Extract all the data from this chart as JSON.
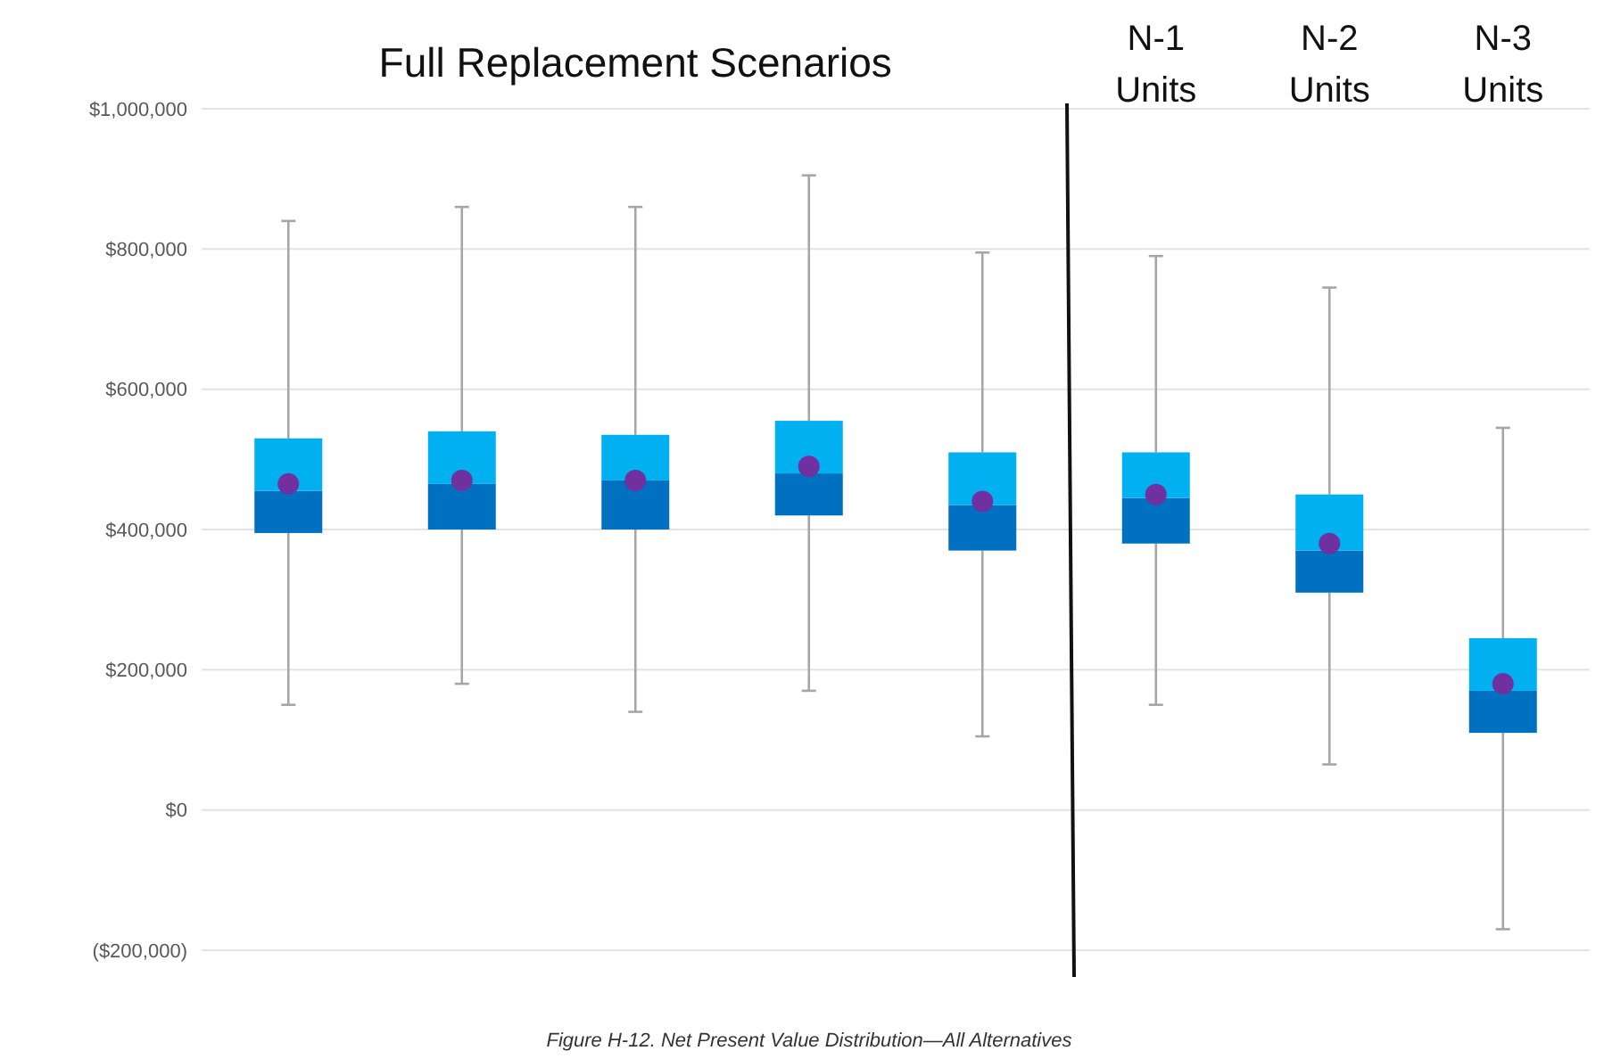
{
  "chart_data": {
    "type": "box",
    "title": "Full Replacement Scenarios",
    "categories": [
      null,
      null,
      null,
      null,
      null,
      null,
      null,
      null
    ],
    "series": [
      {
        "color": "#0070c0",
        "boxes": [
          {
            "low": 150000,
            "q1": 395000,
            "median": 455000,
            "q3": 530000,
            "high": 840000,
            "mean": 465000
          },
          {
            "low": 180000,
            "q1": 400000,
            "median": 465000,
            "q3": 540000,
            "high": 860000,
            "mean": 470000
          },
          {
            "low": 140000,
            "q1": 400000,
            "median": 470000,
            "q3": 535000,
            "high": 860000,
            "mean": 470000
          },
          {
            "low": 170000,
            "q1": 420000,
            "median": 480000,
            "q3": 555000,
            "high": 905000,
            "mean": 490000
          },
          {
            "low": 105000,
            "q1": 370000,
            "median": 435000,
            "q3": 510000,
            "high": 795000,
            "mean": 440000
          },
          {
            "low": 150000,
            "q1": 380000,
            "median": 445000,
            "q3": 510000,
            "high": 790000,
            "mean": 450000
          },
          {
            "low": 65000,
            "q1": 310000,
            "median": 370000,
            "q3": 450000,
            "high": 745000,
            "mean": 380000
          },
          {
            "low": -170000,
            "q1": 110000,
            "median": 170000,
            "q3": 245000,
            "high": 545000,
            "mean": 180000
          }
        ]
      }
    ],
    "ylim": [
      -200000,
      1000000
    ],
    "yticks": [
      {
        "value": -200000,
        "label": "($200,000)"
      },
      {
        "value": 0,
        "label": "$0"
      },
      {
        "value": 200000,
        "label": "$200,000"
      },
      {
        "value": 400000,
        "label": "$400,000"
      },
      {
        "value": 600000,
        "label": "$600,000"
      },
      {
        "value": 800000,
        "label": "$800,000"
      },
      {
        "value": 1000000,
        "label": "$1,000,000"
      }
    ],
    "grid": "y",
    "annotations": [
      "N-1 Units",
      "N-2 Units",
      "N-3 Units",
      "Figure H-12. Net Present Value Distribution—All Alternatives"
    ]
  }
}
